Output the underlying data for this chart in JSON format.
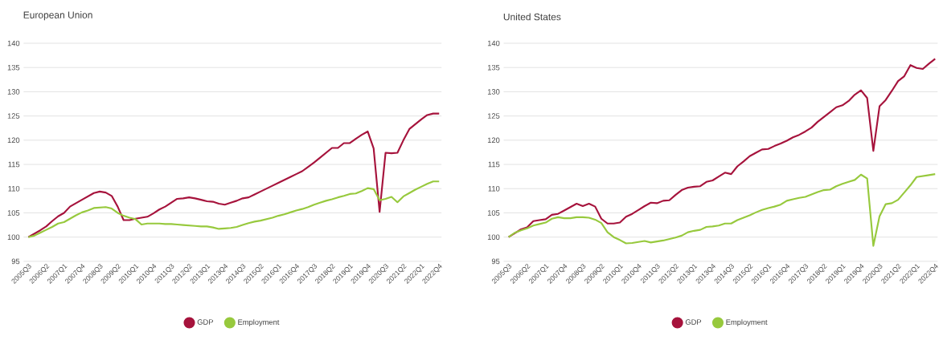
{
  "chart_data": [
    {
      "type": "line",
      "title": "European Union",
      "categories": [
        "2005Q3",
        null,
        null,
        "2006Q2",
        null,
        null,
        "2007Q1",
        null,
        null,
        "2007Q4",
        null,
        null,
        "2008Q3",
        null,
        null,
        "2009Q2",
        null,
        null,
        "2010Q1",
        null,
        null,
        "2010Q4",
        null,
        null,
        "2011Q3",
        null,
        null,
        "2012Q2",
        null,
        null,
        "2013Q1",
        null,
        null,
        "2013Q4",
        null,
        null,
        "2014Q3",
        null,
        null,
        "2015Q2",
        null,
        null,
        "2016Q1",
        null,
        null,
        "2016Q4",
        null,
        null,
        "2017Q3",
        null,
        null,
        "2018Q2",
        null,
        null,
        "2019Q1",
        null,
        null,
        "2019Q4",
        null,
        null,
        "2020Q3",
        null,
        null,
        "2021Q2",
        null,
        null,
        "2022Q1",
        null,
        null,
        "2022Q4"
      ],
      "series": [
        {
          "name": "GDP",
          "color": "#a6133c",
          "values": [
            100,
            100.7,
            101.4,
            102.2,
            103.3,
            104.3,
            105,
            106.3,
            107,
            107.7,
            108.4,
            109.1,
            109.4,
            109.2,
            108.5,
            106.3,
            103.5,
            103.5,
            103.8,
            104.0,
            104.2,
            104.9,
            105.7,
            106.3,
            107.1,
            107.9,
            108.0,
            108.2,
            108.0,
            107.7,
            107.4,
            107.3,
            106.9,
            106.7,
            107.1,
            107.5,
            108.0,
            108.2,
            108.8,
            109.4,
            110.0,
            110.6,
            111.2,
            111.8,
            112.4,
            113.0,
            113.6,
            114.5,
            115.4,
            116.4,
            117.4,
            118.4,
            118.4,
            119.4,
            119.4,
            120.3,
            121.1,
            121.8,
            118.3,
            105.2,
            117.4,
            117.3,
            117.4,
            120.0,
            122.3,
            123.3,
            124.3,
            125.2,
            125.5,
            125.5
          ]
        },
        {
          "name": "Employment",
          "color": "#97c93d",
          "values": [
            100,
            100.3,
            100.9,
            101.5,
            102.1,
            102.8,
            103.1,
            103.8,
            104.5,
            105.1,
            105.5,
            106.0,
            106.1,
            106.2,
            105.9,
            105.0,
            104.4,
            104.0,
            103.7,
            102.6,
            102.8,
            102.8,
            102.8,
            102.7,
            102.7,
            102.6,
            102.5,
            102.4,
            102.3,
            102.2,
            102.2,
            102.0,
            101.7,
            101.8,
            101.9,
            102.1,
            102.5,
            102.9,
            103.2,
            103.4,
            103.7,
            104.0,
            104.4,
            104.7,
            105.1,
            105.5,
            105.8,
            106.2,
            106.7,
            107.1,
            107.5,
            107.8,
            108.2,
            108.5,
            108.9,
            109.0,
            109.5,
            110.1,
            109.9,
            107.6,
            107.9,
            108.3,
            107.2,
            108.4,
            109.1,
            109.8,
            110.4,
            111.0,
            111.5,
            111.5
          ]
        }
      ],
      "ylim": [
        95,
        140
      ],
      "yticks": [
        95,
        100,
        105,
        110,
        115,
        120,
        125,
        130,
        135,
        140
      ],
      "grid": "y",
      "legend": "bottom",
      "marker": "none",
      "line_style": "solid"
    },
    {
      "type": "line",
      "title": "United States",
      "categories": [
        "2005Q3",
        null,
        null,
        "2006Q2",
        null,
        null,
        "2007Q1",
        null,
        null,
        "2007Q4",
        null,
        null,
        "2008Q3",
        null,
        null,
        "2009Q2",
        null,
        null,
        "2010Q1",
        null,
        null,
        "2010Q4",
        null,
        null,
        "2011Q3",
        null,
        null,
        "2012Q2",
        null,
        null,
        "2013Q1",
        null,
        null,
        "2013Q4",
        null,
        null,
        "2014Q3",
        null,
        null,
        "2015Q2",
        null,
        null,
        "2016Q1",
        null,
        null,
        "2016Q4",
        null,
        null,
        "2017Q3",
        null,
        null,
        "2018Q2",
        null,
        null,
        "2019Q1",
        null,
        null,
        "2019Q4",
        null,
        null,
        "2020Q3",
        null,
        null,
        "2021Q2",
        null,
        null,
        "2022Q1",
        null,
        null,
        "2022Q4"
      ],
      "series": [
        {
          "name": "GDP",
          "color": "#a6133c",
          "values": [
            100,
            100.8,
            101.6,
            102.0,
            103.3,
            103.5,
            103.7,
            104.6,
            104.8,
            105.5,
            106.2,
            106.9,
            106.4,
            106.9,
            106.3,
            103.8,
            102.8,
            102.8,
            103.0,
            104.2,
            104.8,
            105.6,
            106.4,
            107.1,
            107.0,
            107.5,
            107.6,
            108.7,
            109.7,
            110.2,
            110.4,
            110.5,
            111.4,
            111.7,
            112.5,
            113.3,
            113.0,
            114.6,
            115.6,
            116.7,
            117.4,
            118.1,
            118.2,
            118.8,
            119.3,
            119.9,
            120.6,
            121.1,
            121.8,
            122.6,
            123.8,
            124.8,
            125.8,
            126.8,
            127.2,
            128.1,
            129.4,
            130.3,
            128.7,
            117.8,
            127.0,
            128.3,
            130.2,
            132.2,
            133.2,
            135.5,
            134.9,
            134.7,
            135.8,
            136.8
          ]
        },
        {
          "name": "Employment",
          "color": "#97c93d",
          "values": [
            100,
            100.9,
            101.4,
            101.8,
            102.4,
            102.7,
            103.0,
            103.8,
            104.1,
            103.9,
            103.9,
            104.1,
            104.1,
            104.0,
            103.6,
            102.9,
            101.0,
            100.0,
            99.4,
            98.7,
            98.8,
            99.0,
            99.2,
            98.9,
            99.1,
            99.3,
            99.6,
            99.9,
            100.3,
            101.0,
            101.3,
            101.5,
            102.1,
            102.2,
            102.4,
            102.8,
            102.8,
            103.5,
            104.0,
            104.5,
            105.1,
            105.6,
            106.0,
            106.3,
            106.7,
            107.5,
            107.8,
            108.1,
            108.3,
            108.8,
            109.3,
            109.7,
            109.8,
            110.5,
            111.0,
            111.4,
            111.8,
            112.9,
            112.1,
            98.2,
            104.3,
            106.8,
            107.0,
            107.7,
            109.2,
            110.7,
            112.4,
            112.6,
            112.8,
            113.0
          ]
        }
      ],
      "ylim": [
        95,
        140
      ],
      "yticks": [
        95,
        100,
        105,
        110,
        115,
        120,
        125,
        130,
        135,
        140
      ],
      "grid": "y",
      "legend": "bottom",
      "marker": "none",
      "line_style": "solid"
    }
  ]
}
